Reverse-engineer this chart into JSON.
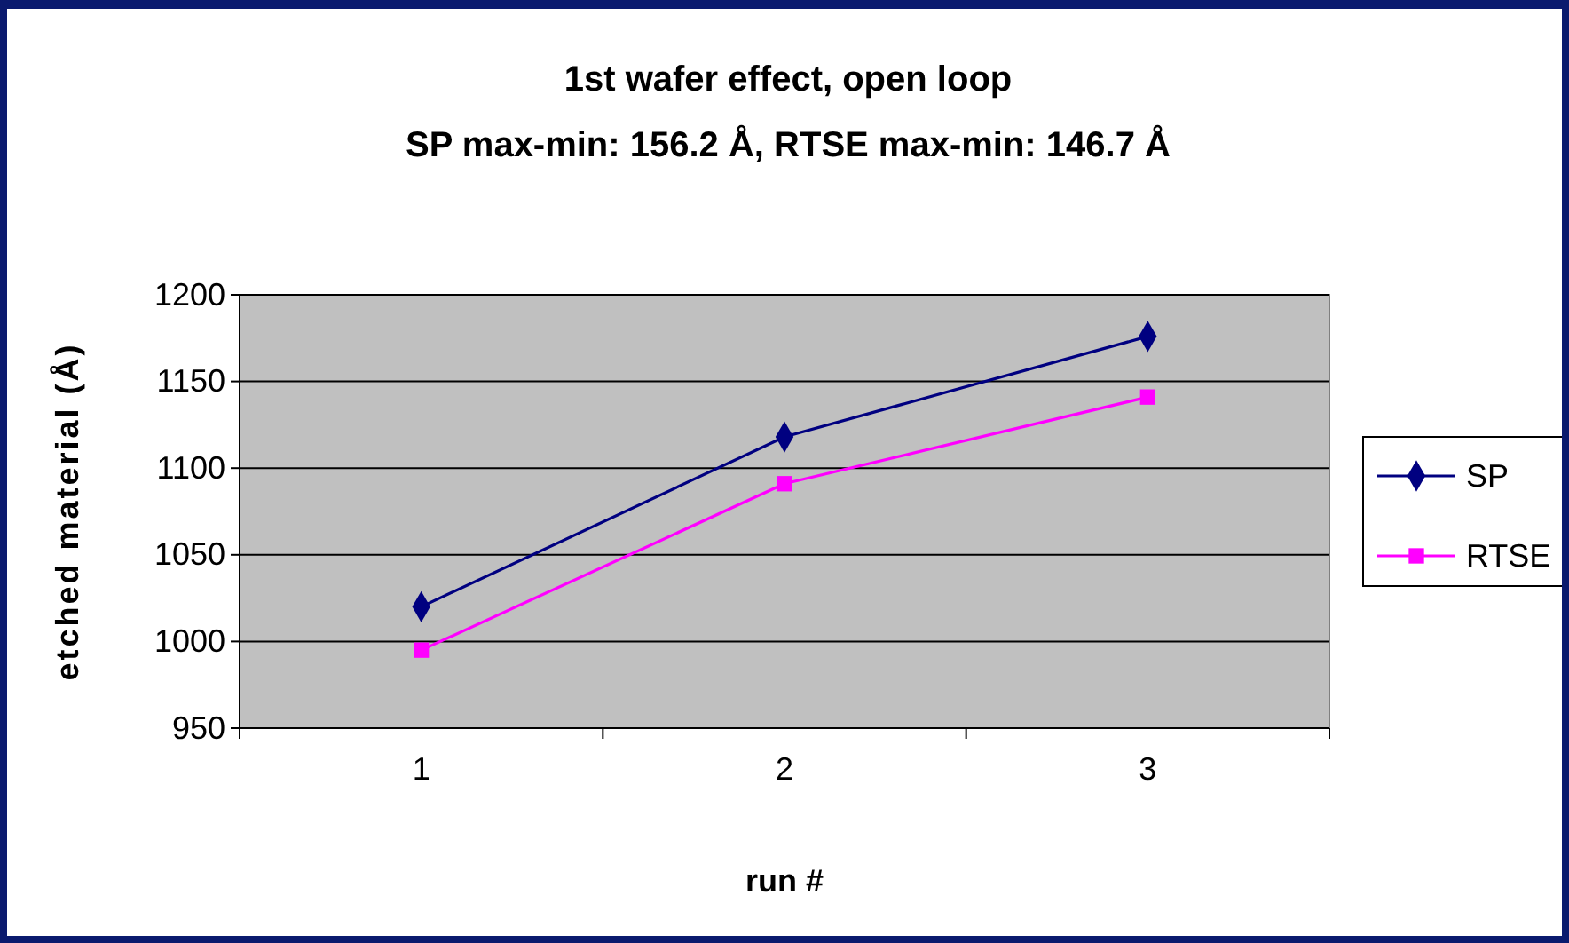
{
  "chart_data": {
    "type": "line",
    "title": "1st wafer effect, open loop",
    "subtitle": "SP max-min:  156.2 Å,  RTSE max-min:  146.7 Å",
    "xlabel": "run #",
    "ylabel": "etched material (Å)",
    "categories": [
      "1",
      "2",
      "3"
    ],
    "ylim": [
      950,
      1200
    ],
    "yticks": [
      950,
      1000,
      1050,
      1100,
      1150,
      1200
    ],
    "grid": "y",
    "legend": "right",
    "series": [
      {
        "name": "SP",
        "color": "#000080",
        "marker": "diamond",
        "values": [
          1020,
          1118,
          1176
        ]
      },
      {
        "name": "RTSE",
        "color": "#ff00ff",
        "marker": "square",
        "values": [
          995,
          1091,
          1141
        ]
      }
    ]
  }
}
